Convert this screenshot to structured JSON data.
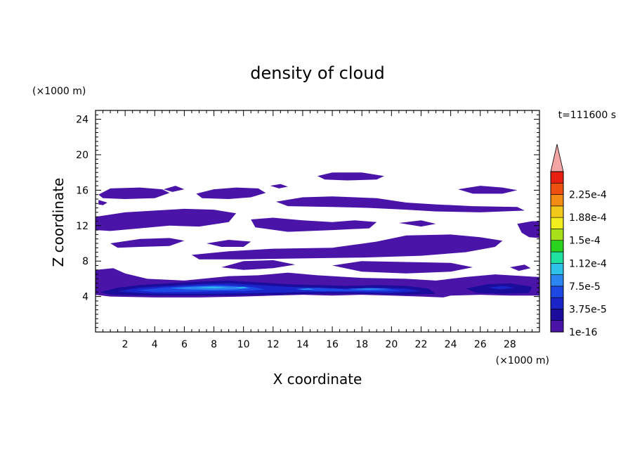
{
  "chart_data": {
    "type": "contour",
    "title": "density of cloud",
    "xlabel": "X coordinate",
    "ylabel": "Z coordinate",
    "x_unit": "(×1000 m)",
    "y_unit": "(×1000 m)",
    "time_label": "t=111600 s",
    "xlim": [
      0,
      30
    ],
    "ylim": [
      0,
      25
    ],
    "x_ticks": [
      2,
      4,
      6,
      8,
      10,
      12,
      14,
      16,
      18,
      20,
      22,
      24,
      26,
      28
    ],
    "y_ticks": [
      4,
      8,
      12,
      16,
      20,
      24
    ],
    "colorbar": {
      "levels": [
        1e-16,
        1.875e-05,
        3.75e-05,
        5.625e-05,
        7.5e-05,
        9.375e-05,
        0.0001125,
        0.00013125,
        0.00015,
        0.00016875,
        0.0001875,
        0.00020625,
        0.000225,
        0.00024375
      ],
      "labels": [
        {
          "text": "1e-16",
          "level": 0
        },
        {
          "text": "3.75e-5",
          "level": 2
        },
        {
          "text": "7.5e-5",
          "level": 4
        },
        {
          "text": "1.12e-4",
          "level": 6
        },
        {
          "text": "1.5e-4",
          "level": 8
        },
        {
          "text": "1.88e-4",
          "level": 10
        },
        {
          "text": "2.25e-4",
          "level": 12
        }
      ],
      "colors": [
        "#4a14a8",
        "#1c0c9c",
        "#1a24c8",
        "#1e48e4",
        "#2b86f2",
        "#2ec2e8",
        "#20e0a0",
        "#2ad41e",
        "#a8e01c",
        "#f2ee1e",
        "#f2c81a",
        "#f28c14",
        "#ee5010",
        "#e81e10"
      ],
      "over_color": "#f3a4a4"
    },
    "regions": [
      {
        "level": 0,
        "points": [
          [
            0.2,
            15.5
          ],
          [
            1,
            16.2
          ],
          [
            3,
            16.3
          ],
          [
            4.5,
            16.1
          ],
          [
            5,
            15.7
          ],
          [
            4,
            15.1
          ],
          [
            2,
            15
          ],
          [
            0.5,
            15.1
          ]
        ]
      },
      {
        "level": 0,
        "points": [
          [
            4.6,
            16.1
          ],
          [
            5.4,
            16.5
          ],
          [
            6,
            16.1
          ],
          [
            5.2,
            15.8
          ]
        ]
      },
      {
        "level": 0,
        "points": [
          [
            0.2,
            14.9
          ],
          [
            0.8,
            14.6
          ],
          [
            0.5,
            14.3
          ],
          [
            0.2,
            14.4
          ]
        ]
      },
      {
        "level": 0,
        "points": [
          [
            6.8,
            15.6
          ],
          [
            8,
            16.1
          ],
          [
            9.5,
            16.3
          ],
          [
            11,
            16.2
          ],
          [
            11.5,
            15.7
          ],
          [
            10.5,
            15.2
          ],
          [
            9,
            15
          ],
          [
            7.2,
            15.1
          ]
        ]
      },
      {
        "level": 0,
        "points": [
          [
            11.8,
            16.5
          ],
          [
            12.5,
            16.7
          ],
          [
            13,
            16.4
          ],
          [
            12.4,
            16.2
          ]
        ]
      },
      {
        "level": 0,
        "points": [
          [
            15,
            17.6
          ],
          [
            16,
            18
          ],
          [
            18,
            18
          ],
          [
            19.5,
            17.6
          ],
          [
            19,
            17.2
          ],
          [
            17,
            17.1
          ],
          [
            15.5,
            17.2
          ]
        ]
      },
      {
        "level": 0,
        "points": [
          [
            12.2,
            14.7
          ],
          [
            14,
            15.2
          ],
          [
            16,
            15.3
          ],
          [
            19,
            15.1
          ],
          [
            21,
            14.6
          ],
          [
            23,
            14.4
          ],
          [
            25.5,
            14.2
          ],
          [
            28.5,
            14.1
          ],
          [
            29,
            13.7
          ],
          [
            26,
            13.5
          ],
          [
            23,
            13.6
          ],
          [
            21,
            13.8
          ],
          [
            18.5,
            14
          ],
          [
            16,
            14.1
          ],
          [
            13,
            14.2
          ]
        ]
      },
      {
        "level": 0,
        "points": [
          [
            24.5,
            16.1
          ],
          [
            26,
            16.5
          ],
          [
            27.5,
            16.3
          ],
          [
            28.5,
            16
          ],
          [
            27.5,
            15.6
          ],
          [
            25.5,
            15.6
          ]
        ]
      },
      {
        "level": 0,
        "points": [
          [
            0,
            13
          ],
          [
            2,
            13.5
          ],
          [
            4,
            13.7
          ],
          [
            6,
            13.9
          ],
          [
            8,
            13.8
          ],
          [
            9.5,
            13.4
          ],
          [
            9,
            12.4
          ],
          [
            7,
            11.9
          ],
          [
            5,
            12
          ],
          [
            3,
            11.7
          ],
          [
            1,
            11.4
          ],
          [
            0,
            11.5
          ]
        ]
      },
      {
        "level": 0,
        "points": [
          [
            10.5,
            12.7
          ],
          [
            12,
            12.9
          ],
          [
            14,
            12.6
          ],
          [
            16,
            12.4
          ],
          [
            17.5,
            12.6
          ],
          [
            19,
            12.4
          ],
          [
            18.5,
            11.7
          ],
          [
            16,
            11.5
          ],
          [
            13,
            11.3
          ],
          [
            10.8,
            11.8
          ]
        ]
      },
      {
        "level": 0,
        "points": [
          [
            20.5,
            12.3
          ],
          [
            22,
            12.6
          ],
          [
            23,
            12.2
          ],
          [
            22,
            11.9
          ]
        ]
      },
      {
        "level": 0,
        "points": [
          [
            28.5,
            12.2
          ],
          [
            29.5,
            12.5
          ],
          [
            30,
            12.5
          ],
          [
            30,
            10.6
          ],
          [
            29.3,
            10.7
          ],
          [
            28.8,
            11.2
          ]
        ]
      },
      {
        "level": 0,
        "points": [
          [
            1,
            10
          ],
          [
            3,
            10.5
          ],
          [
            5,
            10.6
          ],
          [
            6,
            10.3
          ],
          [
            5,
            9.7
          ],
          [
            3,
            9.6
          ],
          [
            1.5,
            9.5
          ]
        ]
      },
      {
        "level": 0,
        "points": [
          [
            7.5,
            10
          ],
          [
            9,
            10.4
          ],
          [
            10.5,
            10.2
          ],
          [
            10,
            9.6
          ],
          [
            8.5,
            9.6
          ]
        ]
      },
      {
        "level": 0,
        "points": [
          [
            6.5,
            8.7
          ],
          [
            9,
            9.1
          ],
          [
            12,
            9.4
          ],
          [
            16,
            9.5
          ],
          [
            19,
            10.2
          ],
          [
            21,
            10.9
          ],
          [
            24,
            11
          ],
          [
            26,
            10.7
          ],
          [
            27.5,
            10.3
          ],
          [
            27,
            9.6
          ],
          [
            25,
            9
          ],
          [
            22,
            8.6
          ],
          [
            18,
            8.4
          ],
          [
            14,
            8.3
          ],
          [
            10,
            8.2
          ],
          [
            7,
            8.2
          ]
        ]
      },
      {
        "level": 0,
        "points": [
          [
            8.5,
            7.3
          ],
          [
            10,
            8
          ],
          [
            12,
            8.1
          ],
          [
            13.5,
            7.6
          ],
          [
            12,
            7.2
          ],
          [
            10,
            7
          ]
        ]
      },
      {
        "level": 0,
        "points": [
          [
            16,
            7.5
          ],
          [
            18,
            8
          ],
          [
            21,
            7.9
          ],
          [
            24,
            7.8
          ],
          [
            25.5,
            7.3
          ],
          [
            24,
            6.8
          ],
          [
            21,
            6.6
          ],
          [
            18,
            6.8
          ]
        ]
      },
      {
        "level": 0,
        "points": [
          [
            28,
            7.3
          ],
          [
            29,
            7.6
          ],
          [
            29.4,
            7.2
          ],
          [
            28.6,
            6.9
          ]
        ]
      },
      {
        "level": 0,
        "points": [
          [
            0,
            7
          ],
          [
            1.2,
            7.2
          ],
          [
            2,
            6.6
          ],
          [
            3.5,
            6
          ],
          [
            6,
            5.8
          ],
          [
            9,
            6.3
          ],
          [
            11,
            6.4
          ],
          [
            13,
            6.7
          ],
          [
            15,
            6.4
          ],
          [
            18,
            6.1
          ],
          [
            21,
            6
          ],
          [
            23,
            5.8
          ],
          [
            25,
            6.2
          ],
          [
            27,
            6.5
          ],
          [
            30,
            6.2
          ],
          [
            30,
            4.1
          ],
          [
            28,
            4.1
          ],
          [
            26,
            4.2
          ],
          [
            24,
            4.1
          ],
          [
            23.5,
            3.9
          ],
          [
            22,
            4
          ],
          [
            20,
            4.1
          ],
          [
            18,
            4.2
          ],
          [
            16,
            4.1
          ],
          [
            14,
            4.2
          ],
          [
            12,
            4.1
          ],
          [
            10,
            4
          ],
          [
            7,
            3.9
          ],
          [
            4,
            3.9
          ],
          [
            1,
            4
          ],
          [
            0,
            4.2
          ]
        ]
      },
      {
        "level": 1,
        "points": [
          [
            0.3,
            4.5
          ],
          [
            1.5,
            5
          ],
          [
            3,
            5.3
          ],
          [
            5,
            5.5
          ],
          [
            7,
            5.7
          ],
          [
            9,
            5.8
          ],
          [
            11,
            5.6
          ],
          [
            13,
            5.4
          ],
          [
            15,
            5.3
          ],
          [
            17,
            5.2
          ],
          [
            19,
            5.3
          ],
          [
            21,
            5.2
          ],
          [
            22.5,
            4.9
          ],
          [
            23,
            4.3
          ],
          [
            21,
            4.2
          ],
          [
            18,
            4.3
          ],
          [
            15,
            4.3
          ],
          [
            12,
            4.2
          ],
          [
            9,
            4.1
          ],
          [
            6,
            4.1
          ],
          [
            3,
            4.1
          ],
          [
            1,
            4.2
          ]
        ]
      },
      {
        "level": 1,
        "points": [
          [
            25,
            4.9
          ],
          [
            26.5,
            5.4
          ],
          [
            28,
            5.5
          ],
          [
            29.5,
            5.1
          ],
          [
            29.3,
            4.4
          ],
          [
            27.5,
            4.3
          ],
          [
            25.8,
            4.4
          ]
        ]
      },
      {
        "level": 2,
        "points": [
          [
            1.5,
            4.6
          ],
          [
            3,
            5
          ],
          [
            5,
            5.2
          ],
          [
            7,
            5.4
          ],
          [
            9,
            5.5
          ],
          [
            11,
            5.3
          ],
          [
            13,
            5.1
          ],
          [
            15,
            5
          ],
          [
            17,
            4.9
          ],
          [
            19,
            5
          ],
          [
            21,
            4.9
          ],
          [
            22,
            4.6
          ],
          [
            20,
            4.4
          ],
          [
            17,
            4.5
          ],
          [
            14,
            4.5
          ],
          [
            11,
            4.4
          ],
          [
            8,
            4.3
          ],
          [
            5,
            4.3
          ],
          [
            3,
            4.4
          ]
        ]
      },
      {
        "level": 2,
        "points": [
          [
            26.5,
            5
          ],
          [
            27.5,
            5.2
          ],
          [
            28.3,
            5
          ],
          [
            27.4,
            4.8
          ]
        ]
      },
      {
        "level": 3,
        "points": [
          [
            2.8,
            4.7
          ],
          [
            4.5,
            5
          ],
          [
            6.5,
            5.2
          ],
          [
            8.5,
            5.3
          ],
          [
            10.5,
            5.1
          ],
          [
            11.5,
            4.8
          ],
          [
            10,
            4.6
          ],
          [
            8,
            4.6
          ],
          [
            6,
            4.5
          ],
          [
            4,
            4.5
          ]
        ]
      },
      {
        "level": 3,
        "points": [
          [
            13.5,
            4.8
          ],
          [
            15,
            5
          ],
          [
            17,
            4.8
          ],
          [
            19,
            4.9
          ],
          [
            20.8,
            4.7
          ],
          [
            19.5,
            4.6
          ],
          [
            17,
            4.6
          ],
          [
            15,
            4.6
          ]
        ]
      },
      {
        "level": 4,
        "points": [
          [
            5,
            4.95
          ],
          [
            6.5,
            5.1
          ],
          [
            8,
            5.2
          ],
          [
            9.5,
            5.1
          ],
          [
            10.5,
            4.95
          ],
          [
            9.5,
            4.8
          ],
          [
            8,
            4.75
          ],
          [
            6.3,
            4.8
          ]
        ]
      },
      {
        "level": 4,
        "points": [
          [
            17,
            4.85
          ],
          [
            18.5,
            4.95
          ],
          [
            20,
            4.85
          ],
          [
            18.5,
            4.75
          ]
        ]
      },
      {
        "level": 4,
        "points": [
          [
            13.6,
            4.85
          ],
          [
            14.4,
            4.95
          ],
          [
            14.8,
            4.8
          ],
          [
            14.1,
            4.75
          ]
        ]
      },
      {
        "level": 5,
        "points": [
          [
            6.8,
            5.0
          ],
          [
            7.8,
            5.1
          ],
          [
            9,
            5.05
          ],
          [
            8,
            4.95
          ]
        ]
      },
      {
        "level": 5,
        "points": [
          [
            9.4,
            5.05
          ],
          [
            10,
            5.1
          ],
          [
            10.3,
            5.0
          ],
          [
            9.8,
            4.95
          ]
        ]
      }
    ]
  }
}
